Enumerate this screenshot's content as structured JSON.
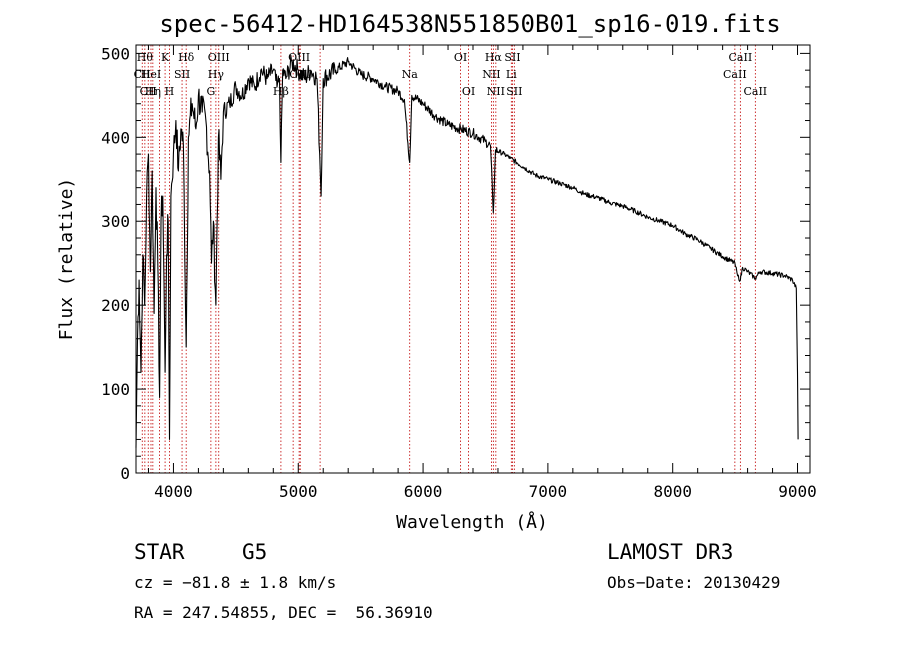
{
  "chart_data": {
    "type": "line",
    "title": "spec-56412-HD164538N551850B01_sp16-019.fits",
    "xlabel": "Wavelength (Å)",
    "ylabel": "Flux (relative)",
    "xlim": [
      3700,
      9100
    ],
    "ylim": [
      0,
      510
    ],
    "xticks": [
      4000,
      5000,
      6000,
      7000,
      8000,
      9000
    ],
    "yticks": [
      0,
      100,
      200,
      300,
      400,
      500
    ],
    "grid": false,
    "series": [
      {
        "name": "spectrum",
        "anchors": [
          [
            3700,
            30
          ],
          [
            3712,
            160
          ],
          [
            3725,
            230
          ],
          [
            3740,
            120
          ],
          [
            3755,
            260
          ],
          [
            3770,
            200
          ],
          [
            3785,
            330
          ],
          [
            3800,
            380
          ],
          [
            3815,
            240
          ],
          [
            3830,
            360
          ],
          [
            3845,
            190
          ],
          [
            3860,
            340
          ],
          [
            3875,
            250
          ],
          [
            3889,
            90
          ],
          [
            3900,
            300
          ],
          [
            3915,
            330
          ],
          [
            3933,
            120
          ],
          [
            3945,
            260
          ],
          [
            3958,
            300
          ],
          [
            3968,
            40
          ],
          [
            3980,
            330
          ],
          [
            4000,
            380
          ],
          [
            4020,
            420
          ],
          [
            4040,
            360
          ],
          [
            4060,
            410
          ],
          [
            4080,
            390
          ],
          [
            4102,
            150
          ],
          [
            4120,
            400
          ],
          [
            4150,
            440
          ],
          [
            4180,
            410
          ],
          [
            4200,
            450
          ],
          [
            4230,
            430
          ],
          [
            4260,
            420
          ],
          [
            4290,
            360
          ],
          [
            4305,
            250
          ],
          [
            4320,
            300
          ],
          [
            4340,
            200
          ],
          [
            4360,
            400
          ],
          [
            4380,
            350
          ],
          [
            4400,
            430
          ],
          [
            4450,
            440
          ],
          [
            4500,
            460
          ],
          [
            4550,
            450
          ],
          [
            4600,
            470
          ],
          [
            4650,
            460
          ],
          [
            4700,
            480
          ],
          [
            4750,
            470
          ],
          [
            4800,
            480
          ],
          [
            4830,
            460
          ],
          [
            4850,
            470
          ],
          [
            4861,
            370
          ],
          [
            4875,
            480
          ],
          [
            4900,
            470
          ],
          [
            4950,
            490
          ],
          [
            5000,
            480
          ],
          [
            5050,
            470
          ],
          [
            5100,
            480
          ],
          [
            5150,
            470
          ],
          [
            5172,
            380
          ],
          [
            5183,
            330
          ],
          [
            5200,
            470
          ],
          [
            5300,
            480
          ],
          [
            5400,
            490
          ],
          [
            5500,
            475
          ],
          [
            5600,
            470
          ],
          [
            5700,
            460
          ],
          [
            5800,
            455
          ],
          [
            5850,
            445
          ],
          [
            5893,
            370
          ],
          [
            5910,
            450
          ],
          [
            6000,
            440
          ],
          [
            6100,
            425
          ],
          [
            6200,
            415
          ],
          [
            6300,
            410
          ],
          [
            6400,
            405
          ],
          [
            6500,
            395
          ],
          [
            6540,
            390
          ],
          [
            6563,
            310
          ],
          [
            6580,
            385
          ],
          [
            6650,
            380
          ],
          [
            6700,
            375
          ],
          [
            6800,
            365
          ],
          [
            6900,
            355
          ],
          [
            7000,
            350
          ],
          [
            7100,
            345
          ],
          [
            7200,
            340
          ],
          [
            7300,
            332
          ],
          [
            7400,
            328
          ],
          [
            7500,
            322
          ],
          [
            7600,
            318
          ],
          [
            7700,
            312
          ],
          [
            7800,
            305
          ],
          [
            7900,
            300
          ],
          [
            8000,
            295
          ],
          [
            8100,
            285
          ],
          [
            8200,
            278
          ],
          [
            8300,
            268
          ],
          [
            8400,
            258
          ],
          [
            8498,
            250
          ],
          [
            8520,
            235
          ],
          [
            8542,
            230
          ],
          [
            8560,
            245
          ],
          [
            8600,
            240
          ],
          [
            8662,
            232
          ],
          [
            8700,
            240
          ],
          [
            8800,
            238
          ],
          [
            8900,
            235
          ],
          [
            8960,
            230
          ],
          [
            8990,
            220
          ],
          [
            9000,
            120
          ],
          [
            9005,
            40
          ]
        ]
      }
    ],
    "lines": [
      {
        "x": 3750,
        "label": "CII",
        "row": 1
      },
      {
        "x": 3771,
        "label": "Hθ",
        "row": 0
      },
      {
        "x": 3798,
        "label": "CII",
        "row": 2
      },
      {
        "x": 3820,
        "label": "HeI",
        "row": 1
      },
      {
        "x": 3835,
        "label": "Hη",
        "row": 2
      },
      {
        "x": 3889,
        "label": "",
        "row": 0
      },
      {
        "x": 3933,
        "label": "K",
        "row": 0
      },
      {
        "x": 3968,
        "label": "H",
        "row": 2
      },
      {
        "x": 4069,
        "label": "SII",
        "row": 1
      },
      {
        "x": 4102,
        "label": "Hδ",
        "row": 0
      },
      {
        "x": 4300,
        "label": "G",
        "row": 2
      },
      {
        "x": 4340,
        "label": "Hγ",
        "row": 1
      },
      {
        "x": 4363,
        "label": "OIII",
        "row": 0
      },
      {
        "x": 4861,
        "label": "Hβ",
        "row": 2
      },
      {
        "x": 4959,
        "label": "",
        "row": 0
      },
      {
        "x": 5007,
        "label": "OIII",
        "row": 0
      },
      {
        "x": 5016,
        "label": "OIII",
        "row": 1
      },
      {
        "x": 5175,
        "label": "",
        "row": 0
      },
      {
        "x": 5893,
        "label": "Na",
        "row": 1
      },
      {
        "x": 6300,
        "label": "OI",
        "row": 0
      },
      {
        "x": 6364,
        "label": "OI",
        "row": 2
      },
      {
        "x": 6548,
        "label": "NII",
        "row": 1
      },
      {
        "x": 6563,
        "label": "Hα",
        "row": 0
      },
      {
        "x": 6583,
        "label": "NII",
        "row": 2
      },
      {
        "x": 6707,
        "label": "Li",
        "row": 1
      },
      {
        "x": 6716,
        "label": "SII",
        "row": 0
      },
      {
        "x": 6731,
        "label": "SII",
        "row": 2
      },
      {
        "x": 8498,
        "label": "CaII",
        "row": 1
      },
      {
        "x": 8542,
        "label": "CaII",
        "row": 0
      },
      {
        "x": 8662,
        "label": "CaII",
        "row": 2
      }
    ]
  },
  "info": {
    "class_label": "STAR",
    "subclass": "G5",
    "survey": "LAMOST DR3",
    "cz": "cz = −81.8 ± 1.8 km/s",
    "obs_date": "Obs−Date: 20130429",
    "coords": "RA = 247.54855, DEC =  56.36910"
  }
}
